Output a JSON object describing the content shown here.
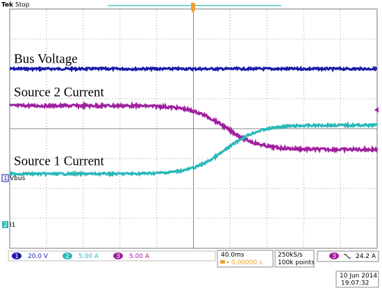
{
  "header": {
    "brand": "Tek",
    "status": "Stop"
  },
  "annotations": [
    "Bus Voltage",
    "Source 2 Current",
    "Source 1 Current"
  ],
  "markers": [
    {
      "channel": "1",
      "label": "Vbus"
    },
    {
      "channel": "2",
      "label": "I1"
    }
  ],
  "channels": [
    {
      "number": "1",
      "scale": "20.0 V"
    },
    {
      "number": "2",
      "scale": "5.00 A"
    },
    {
      "number": "3",
      "scale": "5.00 A"
    }
  ],
  "timebase": {
    "scale": "40.0ms",
    "delay": "0.00000 s"
  },
  "acquisition": {
    "rate": "250kS/s",
    "record": "100k points"
  },
  "trigger": {
    "channel": "3",
    "level": "24.2 A"
  },
  "datetime": {
    "date": "10 Jun 2014",
    "time": "19:07:32"
  }
}
